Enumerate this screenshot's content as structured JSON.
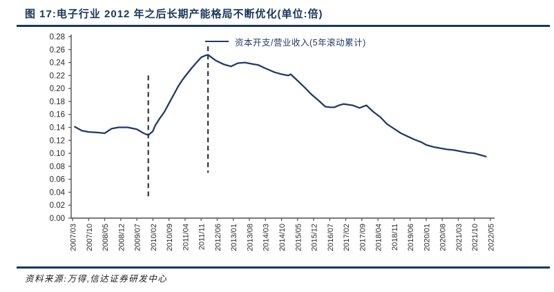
{
  "page": {
    "figure_title": "图 17:电子行业 2012 年之后长期产能格局不断优化(单位:倍)",
    "source_note": "资料来源:万得,信达证券研发中心",
    "accent_color": "#17365d"
  },
  "chart_data": {
    "type": "line",
    "title": "电子行业 2012 年之后长期产能格局不断优化",
    "unit": "倍",
    "grid": false,
    "legend_position": "top-center",
    "legend": [
      {
        "label": "资本开支/营业收入(5年滚动累计)",
        "color": "#1f3a68"
      }
    ],
    "xlabel": "",
    "ylabel": "",
    "ylim": [
      0,
      0.28
    ],
    "y_tick_step": 0.02,
    "x_start": "2007/03",
    "x_end": "2022/05",
    "x_tick_labels": [
      "2007/03",
      "2007/10",
      "2008/05",
      "2008/12",
      "2009/07",
      "2010/02",
      "2010/09",
      "2011/04",
      "2011/11",
      "2012/06",
      "2013/01",
      "2013/08",
      "2014/03",
      "2014/10",
      "2015/05",
      "2015/12",
      "2016/07",
      "2017/02",
      "2017/09",
      "2018/04",
      "2018/11",
      "2019/06",
      "2020/01",
      "2020/08",
      "2021/03",
      "2021/10",
      "2022/05"
    ],
    "x_tick_interval_months": 7,
    "annotations": {
      "dashed_vlines": [
        {
          "x": "2009/12",
          "y_from": 0.03,
          "y_to": 0.22,
          "color": "#333333"
        },
        {
          "x": "2012/02",
          "y_from": 0.07,
          "y_to": 0.265,
          "color": "#333333"
        }
      ]
    },
    "series": [
      {
        "name": "资本开支/营业收入(5年滚动累计)",
        "color": "#1f3a68",
        "points": [
          [
            "2007/04",
            0.141
          ],
          [
            "2007/07",
            0.135
          ],
          [
            "2007/10",
            0.133
          ],
          [
            "2008/02",
            0.132
          ],
          [
            "2008/05",
            0.131
          ],
          [
            "2008/08",
            0.138
          ],
          [
            "2008/11",
            0.14
          ],
          [
            "2009/03",
            0.14
          ],
          [
            "2009/07",
            0.137
          ],
          [
            "2009/10",
            0.131
          ],
          [
            "2009/12",
            0.128
          ],
          [
            "2010/02",
            0.134
          ],
          [
            "2010/03",
            0.143
          ],
          [
            "2010/05",
            0.154
          ],
          [
            "2010/07",
            0.164
          ],
          [
            "2010/09",
            0.177
          ],
          [
            "2010/11",
            0.19
          ],
          [
            "2011/01",
            0.203
          ],
          [
            "2011/03",
            0.214
          ],
          [
            "2011/05",
            0.223
          ],
          [
            "2011/07",
            0.232
          ],
          [
            "2011/09",
            0.24
          ],
          [
            "2011/11",
            0.248
          ],
          [
            "2012/01",
            0.251
          ],
          [
            "2012/02",
            0.252
          ],
          [
            "2012/05",
            0.244
          ],
          [
            "2012/06",
            0.242
          ],
          [
            "2012/09",
            0.237
          ],
          [
            "2012/12",
            0.234
          ],
          [
            "2013/03",
            0.239
          ],
          [
            "2013/06",
            0.24
          ],
          [
            "2013/09",
            0.238
          ],
          [
            "2013/12",
            0.236
          ],
          [
            "2014/03",
            0.231
          ],
          [
            "2014/07",
            0.225
          ],
          [
            "2014/10",
            0.222
          ],
          [
            "2015/01",
            0.22
          ],
          [
            "2015/02",
            0.222
          ],
          [
            "2015/05",
            0.212
          ],
          [
            "2015/08",
            0.202
          ],
          [
            "2015/11",
            0.191
          ],
          [
            "2016/02",
            0.182
          ],
          [
            "2016/05",
            0.172
          ],
          [
            "2016/07",
            0.171
          ],
          [
            "2016/09",
            0.171
          ],
          [
            "2016/11",
            0.174
          ],
          [
            "2017/01",
            0.176
          ],
          [
            "2017/03",
            0.175
          ],
          [
            "2017/05",
            0.174
          ],
          [
            "2017/08",
            0.17
          ],
          [
            "2017/11",
            0.174
          ],
          [
            "2018/02",
            0.164
          ],
          [
            "2018/05",
            0.156
          ],
          [
            "2018/08",
            0.145
          ],
          [
            "2018/11",
            0.138
          ],
          [
            "2019/02",
            0.131
          ],
          [
            "2019/05",
            0.126
          ],
          [
            "2019/08",
            0.121
          ],
          [
            "2019/11",
            0.117
          ],
          [
            "2020/01",
            0.113
          ],
          [
            "2020/04",
            0.11
          ],
          [
            "2020/07",
            0.108
          ],
          [
            "2020/10",
            0.106
          ],
          [
            "2021/01",
            0.105
          ],
          [
            "2021/04",
            0.103
          ],
          [
            "2021/07",
            0.101
          ],
          [
            "2021/10",
            0.1
          ],
          [
            "2022/01",
            0.097
          ],
          [
            "2022/03",
            0.095
          ]
        ]
      }
    ]
  }
}
